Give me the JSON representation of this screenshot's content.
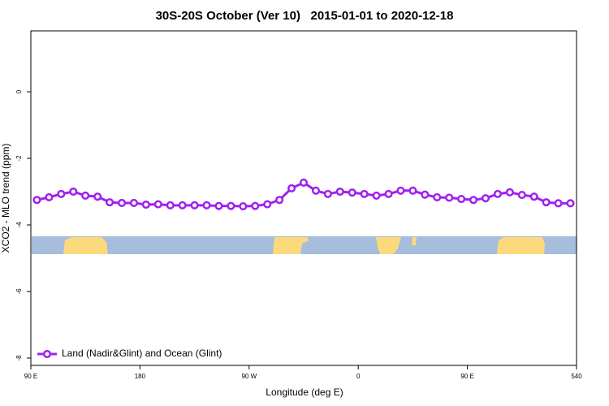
{
  "chart_data": {
    "type": "line",
    "title": "30S-20S October (Ver 10)   2015-01-01 to 2020-12-18",
    "x_label": "Longitude (deg E)",
    "y_label": "XCO2 - MLO trend (ppm)",
    "x": [
      95,
      105,
      115,
      125,
      135,
      145,
      155,
      165,
      175,
      185,
      195,
      205,
      215,
      225,
      235,
      245,
      255,
      265,
      275,
      285,
      295,
      305,
      315,
      325,
      335,
      345,
      355,
      365,
      375,
      385,
      395,
      405,
      415,
      425,
      435,
      445,
      455,
      465,
      475,
      485,
      495,
      505,
      515,
      525,
      535
    ],
    "series": [
      {
        "name": "Land (Nadir&Glint) and Ocean (Glint)",
        "color": "#a020f0",
        "values": [
          -3.25,
          -3.17,
          -3.07,
          -3.0,
          -3.12,
          -3.15,
          -3.32,
          -3.34,
          -3.34,
          -3.39,
          -3.38,
          -3.41,
          -3.41,
          -3.41,
          -3.41,
          -3.43,
          -3.43,
          -3.44,
          -3.43,
          -3.38,
          -3.25,
          -2.9,
          -2.73,
          -2.97,
          -3.07,
          -3.0,
          -3.03,
          -3.07,
          -3.12,
          -3.07,
          -2.97,
          -2.97,
          -3.09,
          -3.17,
          -3.18,
          -3.22,
          -3.25,
          -3.2,
          -3.07,
          -3.02,
          -3.1,
          -3.15,
          -3.32,
          -3.35,
          -3.35
        ]
      }
    ],
    "xlim": [
      90,
      540
    ],
    "xticks": [
      {
        "value": 90,
        "label": "90 E"
      },
      180,
      {
        "value": 270,
        "label": "90 W"
      },
      {
        "value": 360,
        "label": "0"
      },
      {
        "value": 450,
        "label": "90 E"
      },
      540
    ],
    "ylim": [
      -8.22,
      1.83
    ],
    "yticks": [
      0,
      -2,
      -4,
      -6,
      -8
    ],
    "legend": "bottom-left"
  }
}
